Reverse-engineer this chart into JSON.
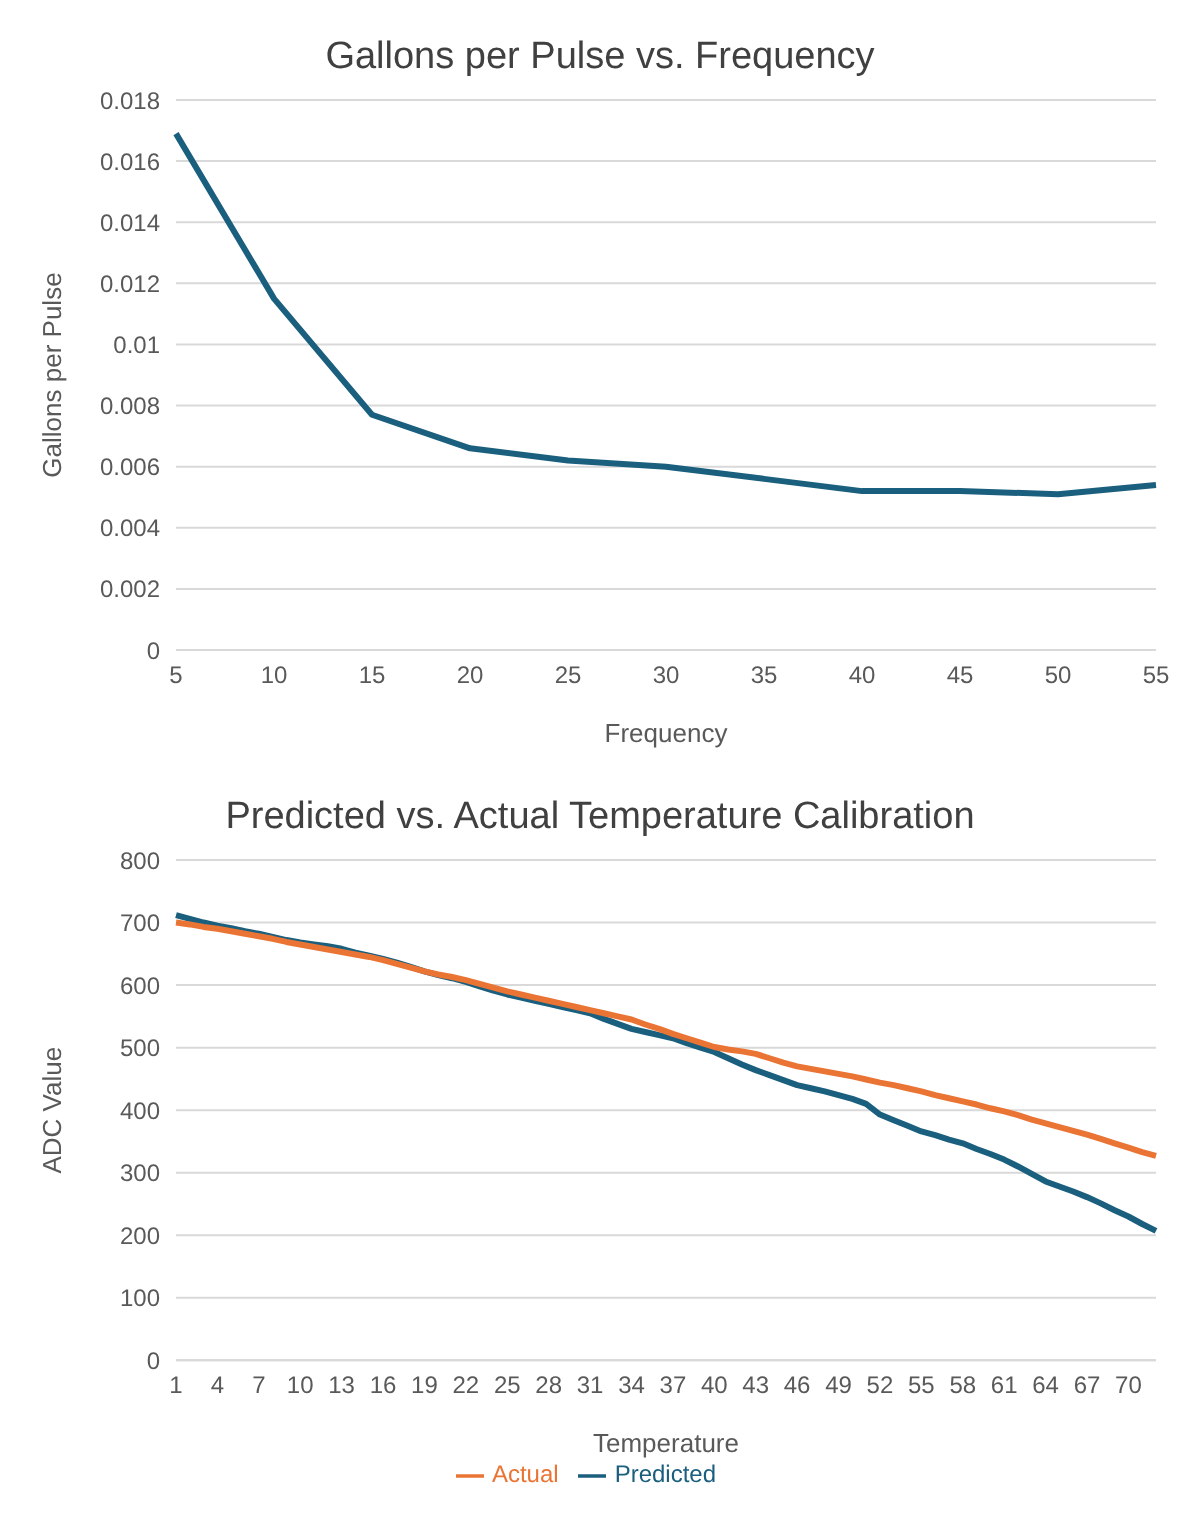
{
  "chart_data": [
    {
      "type": "line",
      "title": "Gallons per Pulse vs. Frequency",
      "xlabel": "Frequency",
      "ylabel": "Gallons per Pulse",
      "categories": [
        "5",
        "10",
        "15",
        "20",
        "25",
        "30",
        "35",
        "40",
        "45",
        "50",
        "55"
      ],
      "series": [
        {
          "color": "#1b5f7e",
          "values": [
            0.0169,
            0.0115,
            0.0077,
            0.0066,
            0.0062,
            0.006,
            0.0056,
            0.0052,
            0.0052,
            0.0051,
            0.0054
          ]
        }
      ],
      "ylim": [
        0,
        0.018
      ],
      "yticks": [
        0,
        0.002,
        0.004,
        0.006,
        0.008,
        0.01,
        0.012,
        0.014,
        0.016,
        0.018
      ],
      "grid": "y",
      "legend": false,
      "marker": "none",
      "line_style": "solid"
    },
    {
      "type": "line",
      "title": "Predicted vs. Actual Temperature Calibration",
      "xlabel": "Temperature",
      "ylabel": "ADC Value",
      "categories": [
        "1",
        null,
        null,
        "4",
        null,
        null,
        "7",
        null,
        null,
        "10",
        null,
        null,
        "13",
        null,
        null,
        "16",
        null,
        null,
        "19",
        null,
        null,
        "22",
        null,
        null,
        "25",
        null,
        null,
        "28",
        null,
        null,
        "31",
        null,
        null,
        "34",
        null,
        null,
        "37",
        null,
        null,
        "40",
        null,
        null,
        "43",
        null,
        null,
        "46",
        null,
        null,
        "49",
        null,
        null,
        "52",
        null,
        null,
        "55",
        null,
        null,
        "58",
        null,
        null,
        "61",
        null,
        null,
        "64",
        null,
        null,
        "67",
        null,
        null,
        "70",
        null,
        null
      ],
      "series": [
        {
          "name": "Predicted",
          "color": "#1b5f7e",
          "values": [
            712,
            706,
            700,
            695,
            691,
            686,
            682,
            677,
            672,
            668,
            665,
            662,
            658,
            652,
            647,
            642,
            636,
            629,
            622,
            616,
            611,
            605,
            598,
            591,
            585,
            580,
            575,
            570,
            565,
            560,
            555,
            546,
            538,
            530,
            525,
            520,
            515,
            507,
            500,
            493,
            483,
            473,
            464,
            456,
            448,
            440,
            435,
            430,
            424,
            418,
            410,
            393,
            384,
            375,
            366,
            360,
            353,
            347,
            338,
            330,
            321,
            310,
            298,
            286,
            278,
            270,
            261,
            251,
            240,
            230,
            218,
            207
          ]
        },
        {
          "name": "Actual",
          "color": "#ea7434",
          "values": [
            700,
            697,
            693,
            690,
            686,
            682,
            678,
            674,
            669,
            665,
            661,
            657,
            653,
            649,
            645,
            640,
            634,
            628,
            622,
            617,
            613,
            608,
            602,
            596,
            590,
            585,
            580,
            575,
            570,
            565,
            560,
            555,
            550,
            545,
            537,
            530,
            522,
            515,
            508,
            501,
            497,
            494,
            490,
            483,
            476,
            470,
            466,
            462,
            458,
            454,
            449,
            444,
            440,
            435,
            430,
            424,
            419,
            414,
            409,
            403,
            398,
            392,
            385,
            379,
            373,
            367,
            361,
            354,
            347,
            340,
            333,
            327
          ]
        }
      ],
      "ylim": [
        0,
        800
      ],
      "yticks": [
        0,
        100,
        200,
        300,
        400,
        500,
        600,
        700,
        800
      ],
      "grid": "y",
      "legend": "bottom",
      "marker": "none",
      "line_style": "solid"
    }
  ]
}
